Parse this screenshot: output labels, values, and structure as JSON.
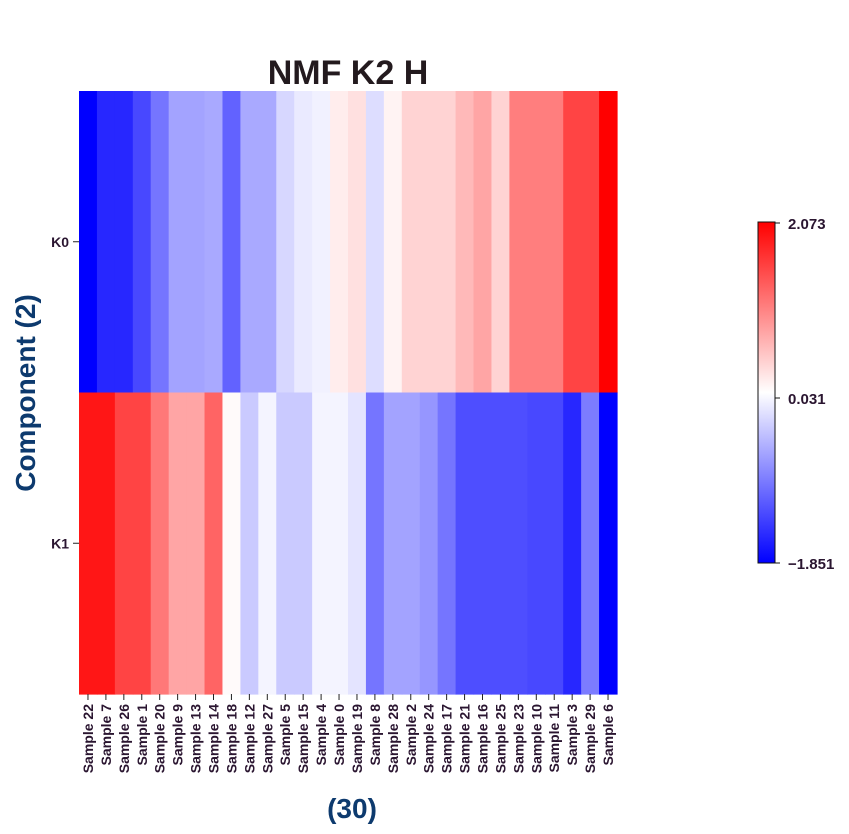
{
  "chart_data": {
    "type": "heatmap",
    "title": "NMF K2 H",
    "xlabel": "(30)",
    "ylabel": "Component (2)",
    "columns": [
      "Sample 22",
      "Sample 7",
      "Sample 26",
      "Sample 1",
      "Sample 20",
      "Sample 9",
      "Sample 13",
      "Sample 14",
      "Sample 18",
      "Sample 12",
      "Sample 27",
      "Sample 5",
      "Sample 15",
      "Sample 4",
      "Sample 0",
      "Sample 19",
      "Sample 8",
      "Sample 28",
      "Sample 2",
      "Sample 24",
      "Sample 17",
      "Sample 21",
      "Sample 16",
      "Sample 25",
      "Sample 23",
      "Sample 10",
      "Sample 11",
      "Sample 3",
      "Sample 29",
      "Sample 6"
    ],
    "rows": [
      "K0",
      "K1"
    ],
    "values": [
      [
        -1.851,
        -1.55,
        -1.55,
        -1.3,
        -0.95,
        -0.6,
        -0.6,
        -0.55,
        -1.1,
        -0.55,
        -0.55,
        -0.2,
        -0.05,
        0.0,
        0.25,
        0.35,
        -0.15,
        0.2,
        0.45,
        0.45,
        0.45,
        0.65,
        0.8,
        0.45,
        1.1,
        1.1,
        1.1,
        1.55,
        1.55,
        2.073
      ],
      [
        1.9,
        1.9,
        1.55,
        1.55,
        1.15,
        0.8,
        0.8,
        1.3,
        0.15,
        -0.3,
        0.03,
        -0.3,
        -0.3,
        0.03,
        0.03,
        -0.1,
        -0.95,
        -0.6,
        -0.6,
        -0.7,
        -0.95,
        -1.25,
        -1.25,
        -1.25,
        -1.25,
        -1.3,
        -1.3,
        -1.55,
        -0.9,
        -1.851
      ]
    ],
    "colorbar": {
      "min": -1.851,
      "max": 2.073,
      "ticks": [
        "−1.851",
        "0.031",
        "2.073"
      ],
      "colors": [
        "#0000ff",
        "#ffffff",
        "#ff0000"
      ]
    }
  }
}
